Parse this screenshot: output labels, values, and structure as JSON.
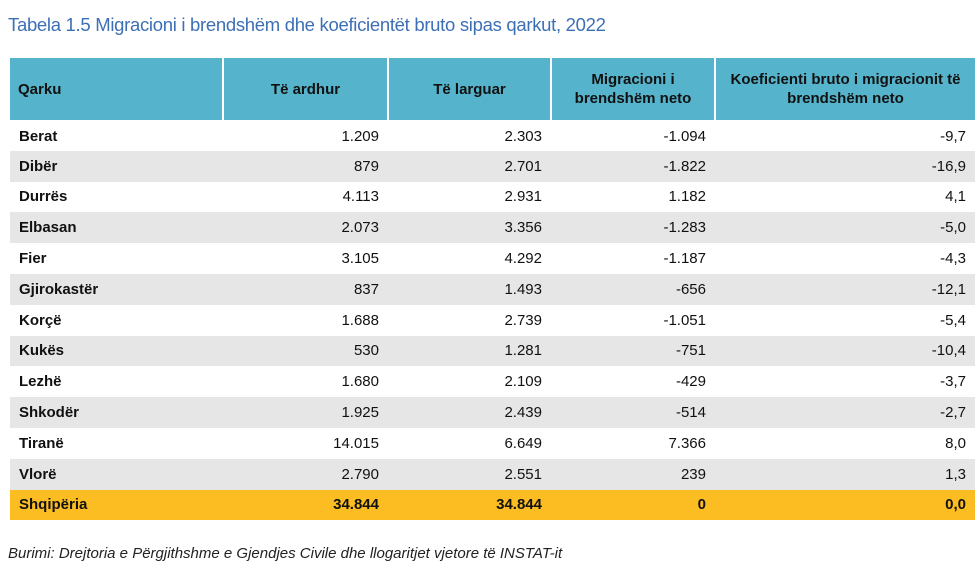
{
  "title": "Tabela 1.5 Migracioni i brendshëm dhe koeficientët bruto sipas qarkut, 2022",
  "columns": [
    "Qarku",
    "Të ardhur",
    "Të larguar",
    "Migracioni i brendshëm neto",
    "Koeficienti bruto i migracionit të brendshëm neto"
  ],
  "rows": [
    [
      "Berat",
      "1.209",
      "2.303",
      "-1.094",
      "-9,7"
    ],
    [
      "Dibër",
      "879",
      "2.701",
      "-1.822",
      "-16,9"
    ],
    [
      "Durrës",
      "4.113",
      "2.931",
      "1.182",
      "4,1"
    ],
    [
      "Elbasan",
      "2.073",
      "3.356",
      "-1.283",
      "-5,0"
    ],
    [
      "Fier",
      "3.105",
      "4.292",
      "-1.187",
      "-4,3"
    ],
    [
      "Gjirokastër",
      "837",
      "1.493",
      "-656",
      "-12,1"
    ],
    [
      "Korçë",
      "1.688",
      "2.739",
      "-1.051",
      "-5,4"
    ],
    [
      "Kukës",
      "530",
      "1.281",
      "-751",
      "-10,4"
    ],
    [
      "Lezhë",
      "1.680",
      "2.109",
      "-429",
      "-3,7"
    ],
    [
      "Shkodër",
      "1.925",
      "2.439",
      "-514",
      "-2,7"
    ],
    [
      "Tiranë",
      "14.015",
      "6.649",
      "7.366",
      "8,0"
    ],
    [
      "Vlorë",
      "2.790",
      "2.551",
      "239",
      "1,3"
    ]
  ],
  "total": [
    "Shqipëria",
    "34.844",
    "34.844",
    "0",
    "0,0"
  ],
  "source": "Burimi: Drejtoria e Përgjithshme e Gjendjes Civile dhe llogaritjet vjetore të INSTAT-it",
  "colors": {
    "header": "#55b3cb",
    "total": "#fbbd22",
    "stripe": "#e6e6e6",
    "title": "#3d6fb4"
  }
}
